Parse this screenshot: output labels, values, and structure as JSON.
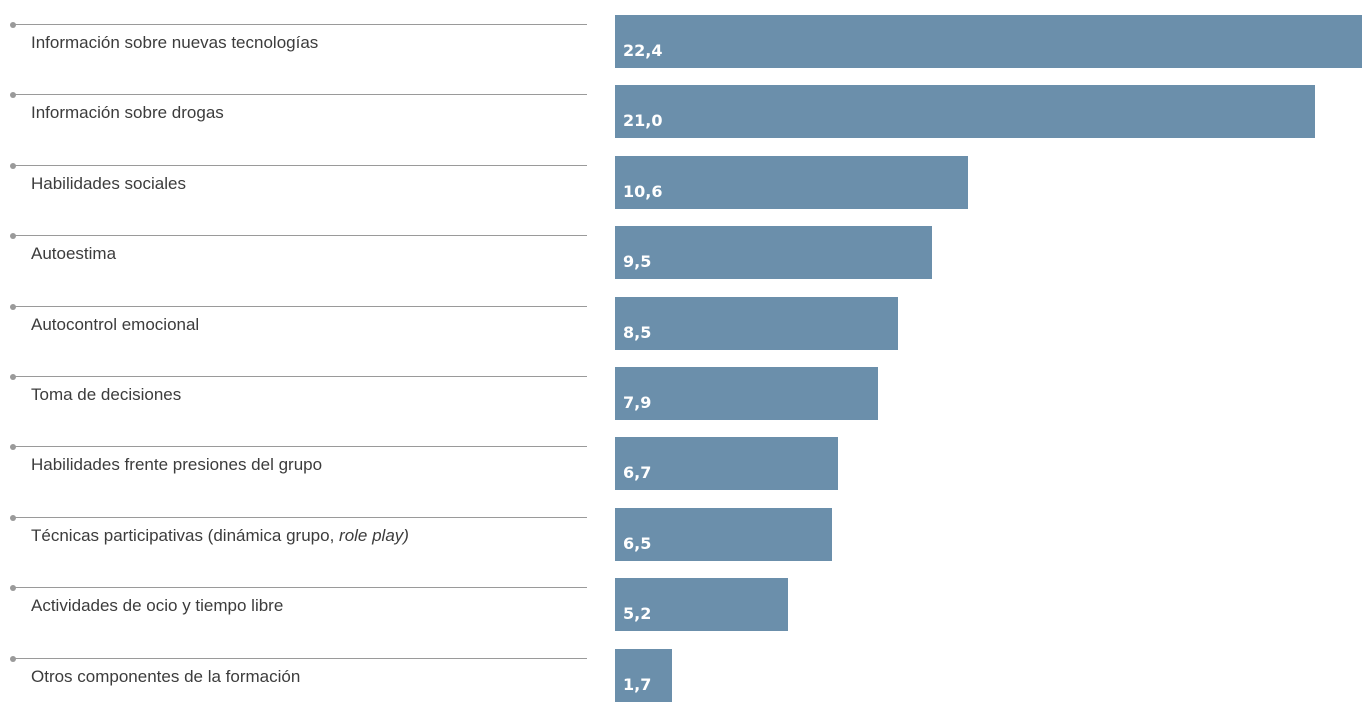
{
  "colors": {
    "bar": "#6b8fab",
    "label_text": "#3c3c3c",
    "rule": "#9a9a9a",
    "value_text": "#ffffff"
  },
  "chart_data": {
    "type": "bar",
    "orientation": "horizontal",
    "title": "",
    "xlabel": "",
    "ylabel": "",
    "xlim": [
      0,
      22.4
    ],
    "grid": false,
    "legend": "none",
    "categories": [
      "Información sobre nuevas tecnologías",
      "Información sobre drogas",
      "Habilidades sociales",
      "Autoestima",
      "Autocontrol emocional",
      "Toma de decisiones",
      "Habilidades frente presiones del grupo",
      "Técnicas participativas (dinámica grupo, role play)",
      "Actividades de ocio y tiempo libre",
      "Otros componentes de la formación"
    ],
    "category_parts": [
      {
        "text": "Información sobre nuevas tecnologías",
        "italic": ""
      },
      {
        "text": "Información sobre drogas",
        "italic": ""
      },
      {
        "text": "Habilidades sociales",
        "italic": ""
      },
      {
        "text": "Autoestima",
        "italic": ""
      },
      {
        "text": "Autocontrol emocional",
        "italic": ""
      },
      {
        "text": "Toma de decisiones",
        "italic": ""
      },
      {
        "text": "Habilidades frente presiones del grupo",
        "italic": ""
      },
      {
        "text": "Técnicas participativas (dinámica grupo, ",
        "italic": "role play)"
      },
      {
        "text": "Actividades de ocio y tiempo libre",
        "italic": ""
      },
      {
        "text": "Otros componentes de la formación",
        "italic": ""
      }
    ],
    "values": [
      22.4,
      21.0,
      10.6,
      9.5,
      8.5,
      7.9,
      6.7,
      6.5,
      5.2,
      1.7
    ],
    "value_labels": [
      "22,4",
      "21,0",
      "10,6",
      "9,5",
      "8,5",
      "7,9",
      "6,7",
      "6,5",
      "5,2",
      "1,7"
    ]
  }
}
